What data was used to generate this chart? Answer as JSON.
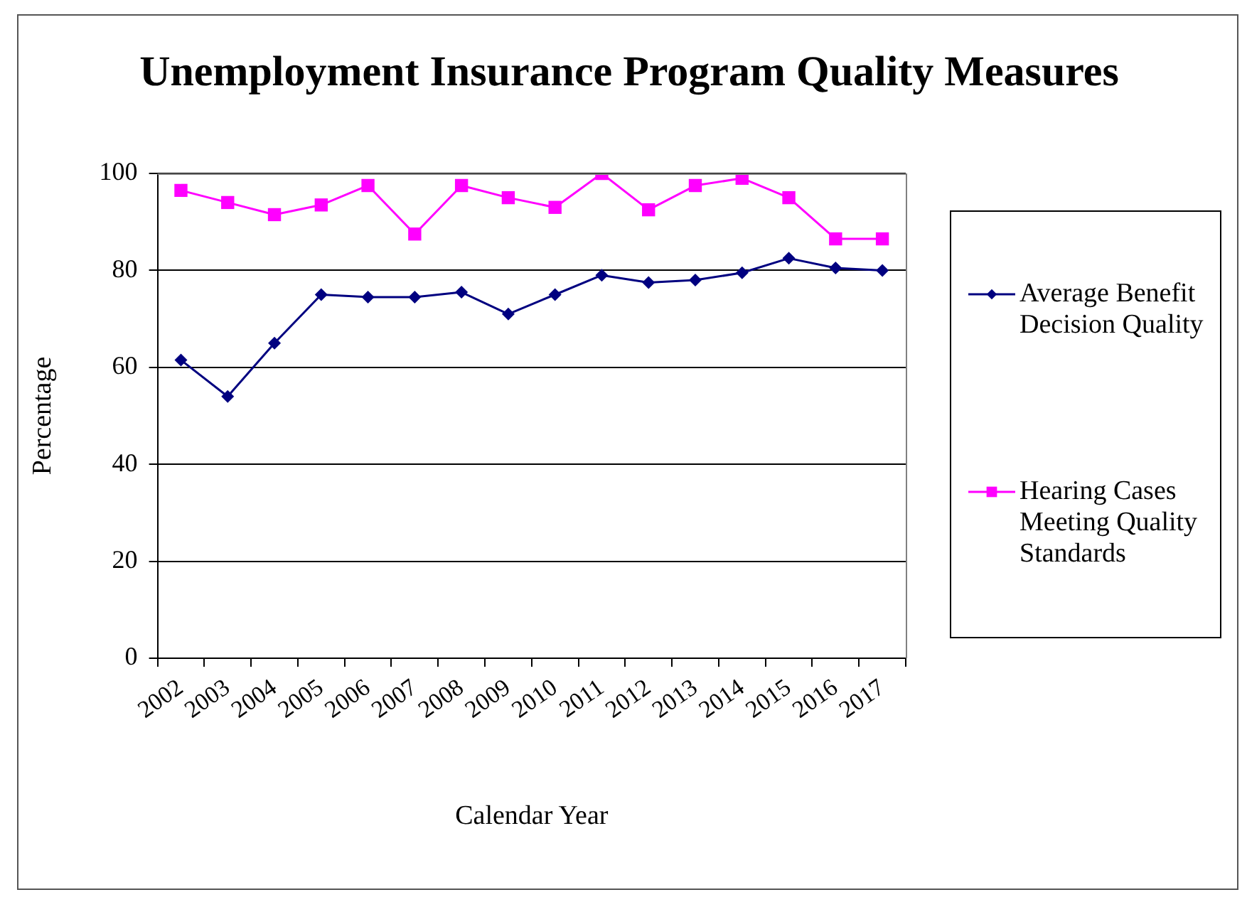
{
  "chart_data": {
    "type": "line",
    "title": "Unemployment Insurance Program Quality Measures",
    "xlabel": "Calendar Year",
    "ylabel": "Percentage",
    "categories": [
      "2002",
      "2003",
      "2004",
      "2005",
      "2006",
      "2007",
      "2008",
      "2009",
      "2010",
      "2011",
      "2012",
      "2013",
      "2014",
      "2015",
      "2016",
      "2017"
    ],
    "series": [
      {
        "name": "Average Benefit Decision Quality",
        "color": "#000080",
        "marker": "diamond",
        "values": [
          61.5,
          54,
          65,
          75,
          74.5,
          74.5,
          75.5,
          71,
          75,
          79,
          77.5,
          78,
          79.5,
          82.5,
          80.5,
          80
        ]
      },
      {
        "name": "Hearing Cases Meeting Quality Standards",
        "color": "#ff00ff",
        "marker": "square",
        "values": [
          96.5,
          94,
          91.5,
          93.5,
          97.5,
          87.5,
          97.5,
          95,
          93,
          100,
          92.5,
          97.5,
          99,
          95,
          86.5,
          86.5
        ]
      }
    ],
    "ylim": [
      0,
      100
    ],
    "yticks": [
      0,
      20,
      40,
      60,
      80,
      100
    ],
    "grid": "y",
    "legend": "right",
    "line_style": "solid"
  }
}
